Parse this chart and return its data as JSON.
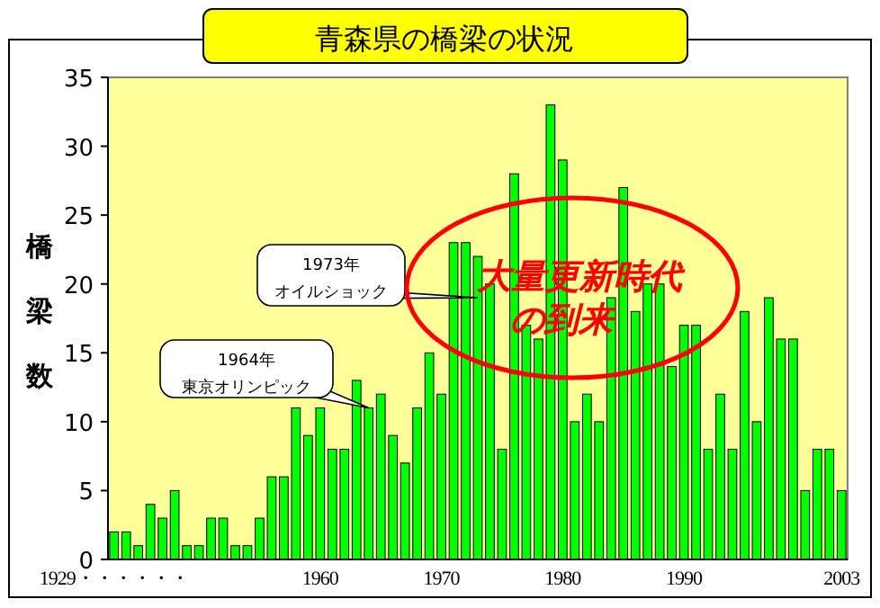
{
  "chart_data": {
    "type": "bar",
    "title": "青森県の橋梁の状況",
    "ylabel": "橋梁数",
    "categories": [
      "1929・・・・・・",
      null,
      null,
      null,
      null,
      null,
      null,
      null,
      null,
      null,
      null,
      null,
      null,
      null,
      null,
      null,
      null,
      "1960",
      null,
      null,
      null,
      null,
      null,
      null,
      null,
      null,
      null,
      "1970",
      null,
      null,
      null,
      null,
      null,
      null,
      null,
      null,
      null,
      "1980",
      null,
      null,
      null,
      null,
      null,
      null,
      null,
      null,
      null,
      "1990",
      null,
      null,
      null,
      null,
      null,
      null,
      null,
      null,
      null,
      null,
      null,
      null,
      "2003"
    ],
    "values": [
      2,
      2,
      1,
      4,
      3,
      5,
      1,
      1,
      3,
      3,
      1,
      1,
      3,
      6,
      6,
      11,
      9,
      11,
      8,
      8,
      13,
      11,
      12,
      9,
      7,
      11,
      15,
      12,
      23,
      23,
      22,
      20,
      8,
      28,
      17,
      16,
      33,
      29,
      10,
      12,
      10,
      19,
      27,
      18,
      20,
      20,
      14,
      17,
      17,
      8,
      12,
      8,
      18,
      10,
      19,
      16,
      16,
      5,
      8,
      8,
      5
    ],
    "color": "#00ff00",
    "ylim": [
      0,
      35
    ],
    "yticks": [
      0,
      5,
      10,
      15,
      20,
      25,
      30,
      35
    ],
    "annotations": [
      "1964年",
      "東京オリンピック",
      "1973年",
      "オイルショック",
      "大量更新時代",
      "の到来"
    ]
  }
}
